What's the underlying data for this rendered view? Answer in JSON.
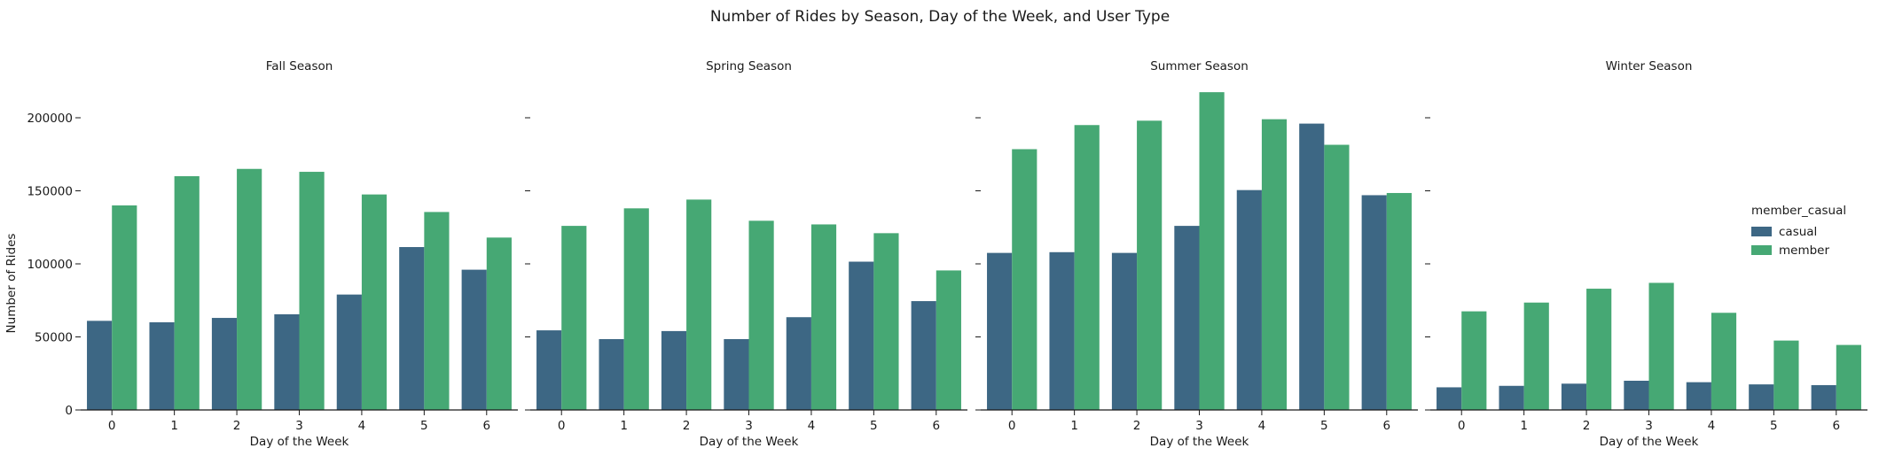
{
  "figure": {
    "title": "Number of Rides by Season, Day of the Week, and User Type",
    "ylabel": "Number of Rides",
    "xlabel": "Day of the Week",
    "legend_title": "member_casual",
    "legend_placement": "right",
    "colors": {
      "casual": "#3d6784",
      "member": "#46a874"
    }
  },
  "chart_data": [
    {
      "type": "bar",
      "title": "Fall Season",
      "xlabel": "Day of the Week",
      "ylabel": "Number of Rides",
      "categories": [
        "0",
        "1",
        "2",
        "3",
        "4",
        "5",
        "6"
      ],
      "ylim": [
        0,
        225000
      ],
      "yticks": [
        0,
        50000,
        100000,
        150000,
        200000
      ],
      "series": [
        {
          "name": "casual",
          "values": [
            61000,
            60000,
            63000,
            65500,
            79000,
            111500,
            96000
          ]
        },
        {
          "name": "member",
          "values": [
            140000,
            160000,
            165000,
            163000,
            147500,
            135500,
            118000
          ]
        }
      ]
    },
    {
      "type": "bar",
      "title": "Spring Season",
      "xlabel": "Day of the Week",
      "ylabel": "Number of Rides",
      "categories": [
        "0",
        "1",
        "2",
        "3",
        "4",
        "5",
        "6"
      ],
      "ylim": [
        0,
        225000
      ],
      "yticks": [
        0,
        50000,
        100000,
        150000,
        200000
      ],
      "series": [
        {
          "name": "casual",
          "values": [
            54500,
            48500,
            54000,
            48500,
            63500,
            101500,
            74500
          ]
        },
        {
          "name": "member",
          "values": [
            126000,
            138000,
            144000,
            129500,
            127000,
            121000,
            95500
          ]
        }
      ]
    },
    {
      "type": "bar",
      "title": "Summer Season",
      "xlabel": "Day of the Week",
      "ylabel": "Number of Rides",
      "categories": [
        "0",
        "1",
        "2",
        "3",
        "4",
        "5",
        "6"
      ],
      "ylim": [
        0,
        225000
      ],
      "yticks": [
        0,
        50000,
        100000,
        150000,
        200000
      ],
      "series": [
        {
          "name": "casual",
          "values": [
            107500,
            108000,
            107500,
            126000,
            150500,
            196000,
            147000
          ]
        },
        {
          "name": "member",
          "values": [
            178500,
            195000,
            198000,
            217500,
            199000,
            181500,
            148500
          ]
        }
      ]
    },
    {
      "type": "bar",
      "title": "Winter Season",
      "xlabel": "Day of the Week",
      "ylabel": "Number of Rides",
      "categories": [
        "0",
        "1",
        "2",
        "3",
        "4",
        "5",
        "6"
      ],
      "ylim": [
        0,
        225000
      ],
      "yticks": [
        0,
        50000,
        100000,
        150000,
        200000
      ],
      "series": [
        {
          "name": "casual",
          "values": [
            15500,
            16500,
            18000,
            20000,
            19000,
            17500,
            17000
          ]
        },
        {
          "name": "member",
          "values": [
            67500,
            73500,
            83000,
            87000,
            66500,
            47500,
            44500
          ]
        }
      ]
    }
  ]
}
